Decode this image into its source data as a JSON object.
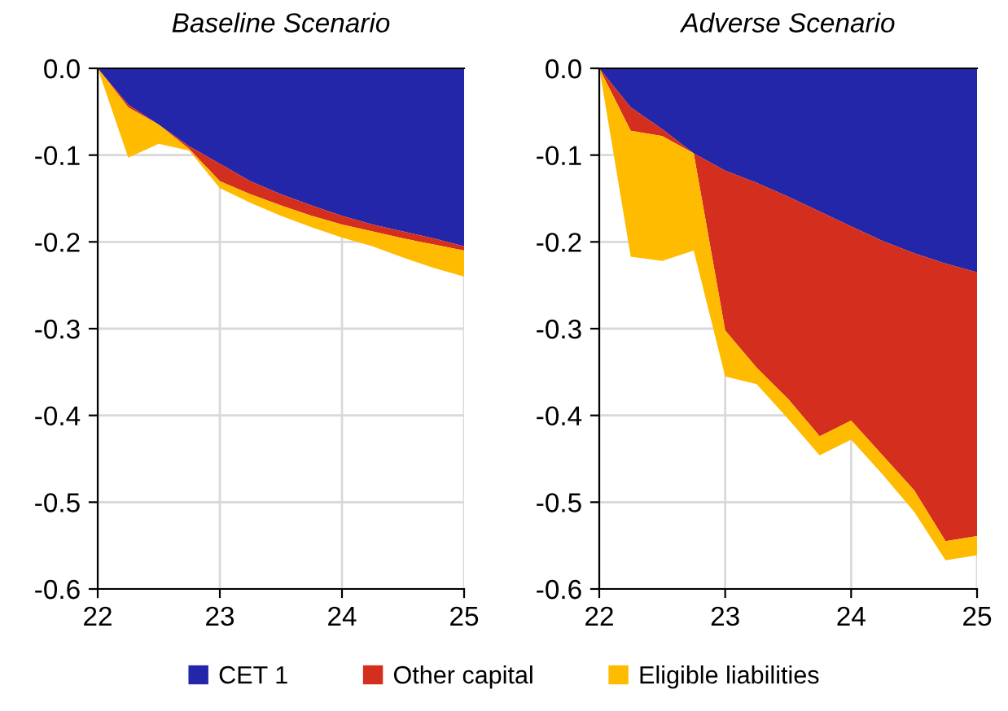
{
  "chart_data": [
    {
      "type": "area",
      "title": "Baseline Scenario",
      "stacked": true,
      "x": [
        22,
        22.25,
        22.5,
        22.75,
        23,
        23.25,
        23.5,
        23.75,
        24,
        24.25,
        24.5,
        24.75,
        25
      ],
      "xlim": [
        22,
        25
      ],
      "xticks": [
        22,
        23,
        24,
        25
      ],
      "ylim": [
        -0.6,
        0.0
      ],
      "yticks": [
        {
          "value": -0.6,
          "label": "-0.6"
        },
        {
          "value": -0.5,
          "label": "-0.5"
        },
        {
          "value": -0.4,
          "label": "-0.4"
        },
        {
          "value": -0.3,
          "label": "-0.3"
        },
        {
          "value": -0.2,
          "label": "-0.2"
        },
        {
          "value": -0.1,
          "label": "-0.1"
        },
        {
          "value": 0.0,
          "label": "0.0"
        }
      ],
      "grid": true,
      "legend": "bottom",
      "series": [
        {
          "name": "CET 1",
          "color": "#2326a8",
          "values": [
            0,
            -0.042,
            -0.065,
            -0.09,
            -0.11,
            -0.13,
            -0.145,
            -0.158,
            -0.17,
            -0.18,
            -0.188,
            -0.196,
            -0.205
          ]
        },
        {
          "name": "Other capital",
          "color": "#d42e1f",
          "values": [
            0,
            -0.003,
            0,
            -0.003,
            -0.02,
            -0.015,
            -0.013,
            -0.012,
            -0.01,
            -0.008,
            -0.008,
            -0.007,
            -0.005
          ]
        },
        {
          "name": "Eligible liabilities",
          "color": "#ffbb00",
          "values": [
            0,
            -0.058,
            -0.022,
            -0.002,
            -0.008,
            -0.01,
            -0.012,
            -0.013,
            -0.015,
            -0.017,
            -0.022,
            -0.027,
            -0.03
          ]
        }
      ]
    },
    {
      "type": "area",
      "title": "Adverse Scenario",
      "stacked": true,
      "x": [
        22,
        22.25,
        22.5,
        22.75,
        23,
        23.25,
        23.5,
        23.75,
        24,
        24.25,
        24.5,
        24.75,
        25
      ],
      "xlim": [
        22,
        25
      ],
      "xticks": [
        22,
        23,
        24,
        25
      ],
      "ylim": [
        -0.6,
        0.0
      ],
      "yticks": [
        {
          "value": -0.6,
          "label": "-0.6"
        },
        {
          "value": -0.5,
          "label": "-0.5"
        },
        {
          "value": -0.4,
          "label": "-0.4"
        },
        {
          "value": -0.3,
          "label": "-0.3"
        },
        {
          "value": -0.2,
          "label": "-0.2"
        },
        {
          "value": -0.1,
          "label": "-0.1"
        },
        {
          "value": 0.0,
          "label": "0.0"
        }
      ],
      "grid": true,
      "series": [
        {
          "color": "#2326a8",
          "values": [
            0,
            -0.045,
            -0.07,
            -0.098,
            -0.118,
            -0.132,
            -0.148,
            -0.165,
            -0.182,
            -0.199,
            -0.213,
            -0.225,
            -0.235
          ]
        },
        {
          "color": "#d42e1f",
          "values": [
            0,
            -0.027,
            -0.008,
            0,
            -0.184,
            -0.213,
            -0.233,
            -0.259,
            -0.224,
            -0.247,
            -0.273,
            -0.32,
            -0.304
          ]
        },
        {
          "color": "#ffbb00",
          "values": [
            0,
            -0.145,
            -0.144,
            -0.112,
            -0.053,
            -0.019,
            -0.023,
            -0.022,
            -0.022,
            -0.022,
            -0.025,
            -0.022,
            -0.022
          ]
        }
      ]
    }
  ]
}
